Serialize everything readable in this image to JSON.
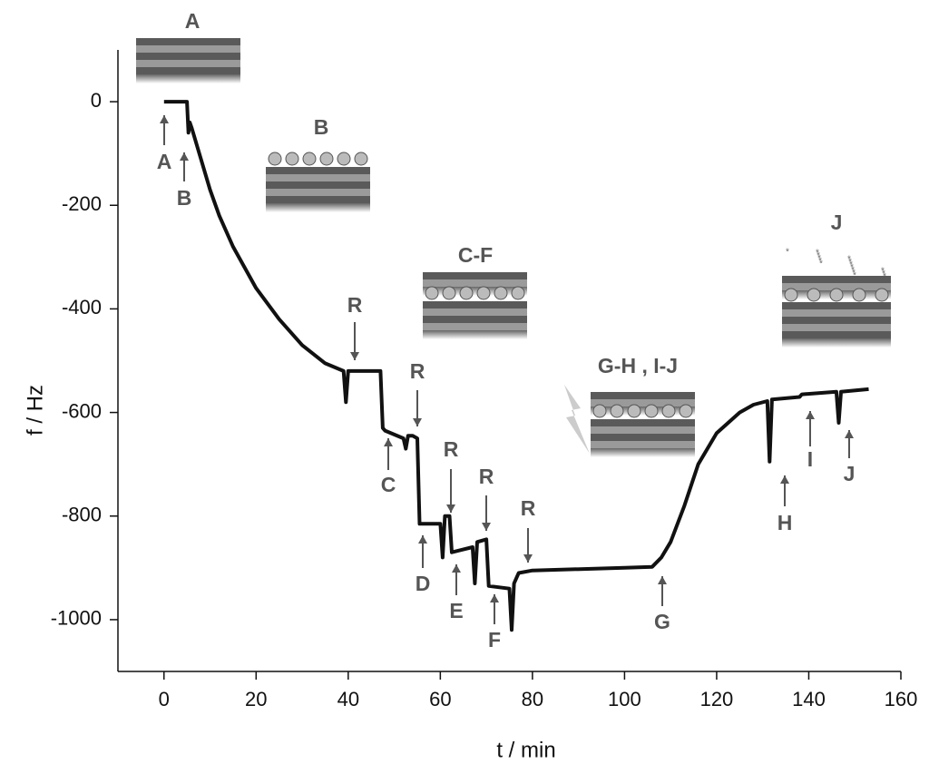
{
  "chart_data": {
    "type": "line",
    "x_label": "t / min",
    "y_label": "f / Hz",
    "xlim": [
      -10,
      160
    ],
    "ylim": [
      -1100,
      100
    ],
    "xticks": [
      0,
      20,
      40,
      60,
      80,
      100,
      120,
      140,
      160
    ],
    "yticks": [
      0,
      -200,
      -400,
      -600,
      -800,
      -1000
    ],
    "color": "#111111",
    "x": [
      0,
      5,
      5.3,
      5.6,
      6,
      8,
      10,
      12,
      15,
      20,
      25,
      30,
      35,
      39,
      39.5,
      40,
      47,
      47.5,
      48,
      52,
      52.5,
      53,
      54,
      55,
      55.5,
      60,
      60.5,
      61,
      62,
      62.5,
      67,
      67.5,
      68,
      70,
      70.5,
      75,
      75.5,
      76,
      77,
      80,
      100,
      106,
      108,
      110,
      113,
      116,
      120,
      125,
      128,
      131,
      131.5,
      132,
      138,
      138.5,
      146,
      146.5,
      147,
      153
    ],
    "values": [
      0,
      0,
      -60,
      -40,
      -50,
      -110,
      -170,
      -220,
      -280,
      -360,
      -420,
      -470,
      -505,
      -520,
      -580,
      -520,
      -520,
      -630,
      -635,
      -650,
      -670,
      -645,
      -645,
      -650,
      -815,
      -815,
      -880,
      -800,
      -800,
      -870,
      -860,
      -930,
      -850,
      -845,
      -935,
      -940,
      -1020,
      -930,
      -910,
      -905,
      -900,
      -898,
      -880,
      -850,
      -780,
      -700,
      -640,
      -600,
      -585,
      -578,
      -695,
      -575,
      -570,
      -565,
      -560,
      -620,
      -560,
      -555
    ],
    "annotations": [
      "A",
      "B",
      "R",
      "C",
      "R",
      "D",
      "R",
      "E",
      "R",
      "F",
      "R",
      "G",
      "H",
      "I",
      "J"
    ],
    "inset_labels": [
      "A",
      "B",
      "C-F",
      "G-H , I-J",
      "J"
    ]
  }
}
